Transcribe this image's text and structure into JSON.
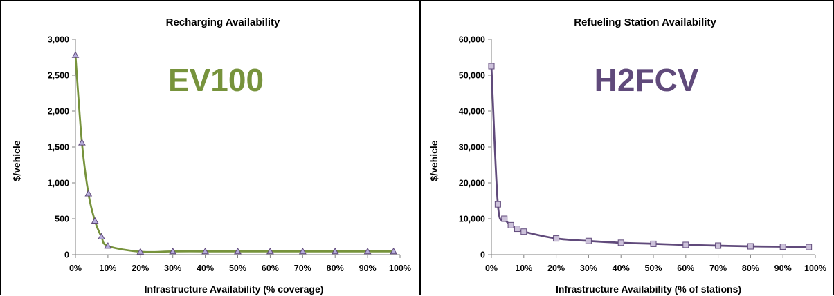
{
  "chart_data": [
    {
      "type": "line",
      "title": "Recharging Availability",
      "annotation": "EV100",
      "xlabel": "Infrastructure Availability (% coverage)",
      "ylabel": "$/vehicle",
      "xlim": [
        0,
        100
      ],
      "ylim": [
        0,
        3000
      ],
      "x_ticks": [
        "0%",
        "10%",
        "20%",
        "30%",
        "40%",
        "50%",
        "60%",
        "70%",
        "80%",
        "90%",
        "100%"
      ],
      "y_ticks": [
        "0",
        "500",
        "1,000",
        "1,500",
        "2,000",
        "2,500",
        "3,000"
      ],
      "marker": "triangle",
      "colors": {
        "line": "#77933c",
        "marker_fill": "#b7aedc",
        "marker_stroke": "#5f497a",
        "annotation": "#77933c"
      },
      "series": [
        {
          "x": [
            0,
            2,
            4,
            6,
            8,
            10,
            20,
            30,
            40,
            50,
            60,
            70,
            80,
            90,
            98
          ],
          "y": [
            2780,
            1560,
            850,
            470,
            250,
            120,
            40,
            45,
            45,
            45,
            45,
            45,
            45,
            45,
            45
          ]
        }
      ]
    },
    {
      "type": "line",
      "title": "Refueling Station Availability",
      "annotation": "H2FCV",
      "xlabel": "Infrastructure Availability (% of stations)",
      "ylabel": "$/vehicle",
      "xlim": [
        0,
        100
      ],
      "ylim": [
        0,
        60000
      ],
      "x_ticks": [
        "0%",
        "10%",
        "20%",
        "30%",
        "40%",
        "50%",
        "60%",
        "70%",
        "80%",
        "90%",
        "100%"
      ],
      "y_ticks": [
        "0",
        "10,000",
        "20,000",
        "30,000",
        "40,000",
        "50,000",
        "60,000"
      ],
      "marker": "square",
      "colors": {
        "line": "#604a7b",
        "marker_fill": "#ccc1da",
        "marker_stroke": "#604a7b",
        "annotation": "#604a7b"
      },
      "series": [
        {
          "x": [
            0,
            2,
            4,
            6,
            8,
            10,
            20,
            30,
            40,
            50,
            60,
            70,
            80,
            90,
            98
          ],
          "y": [
            52500,
            14000,
            10000,
            8200,
            7200,
            6400,
            4500,
            3800,
            3300,
            3000,
            2700,
            2500,
            2300,
            2200,
            2100
          ]
        }
      ]
    }
  ]
}
